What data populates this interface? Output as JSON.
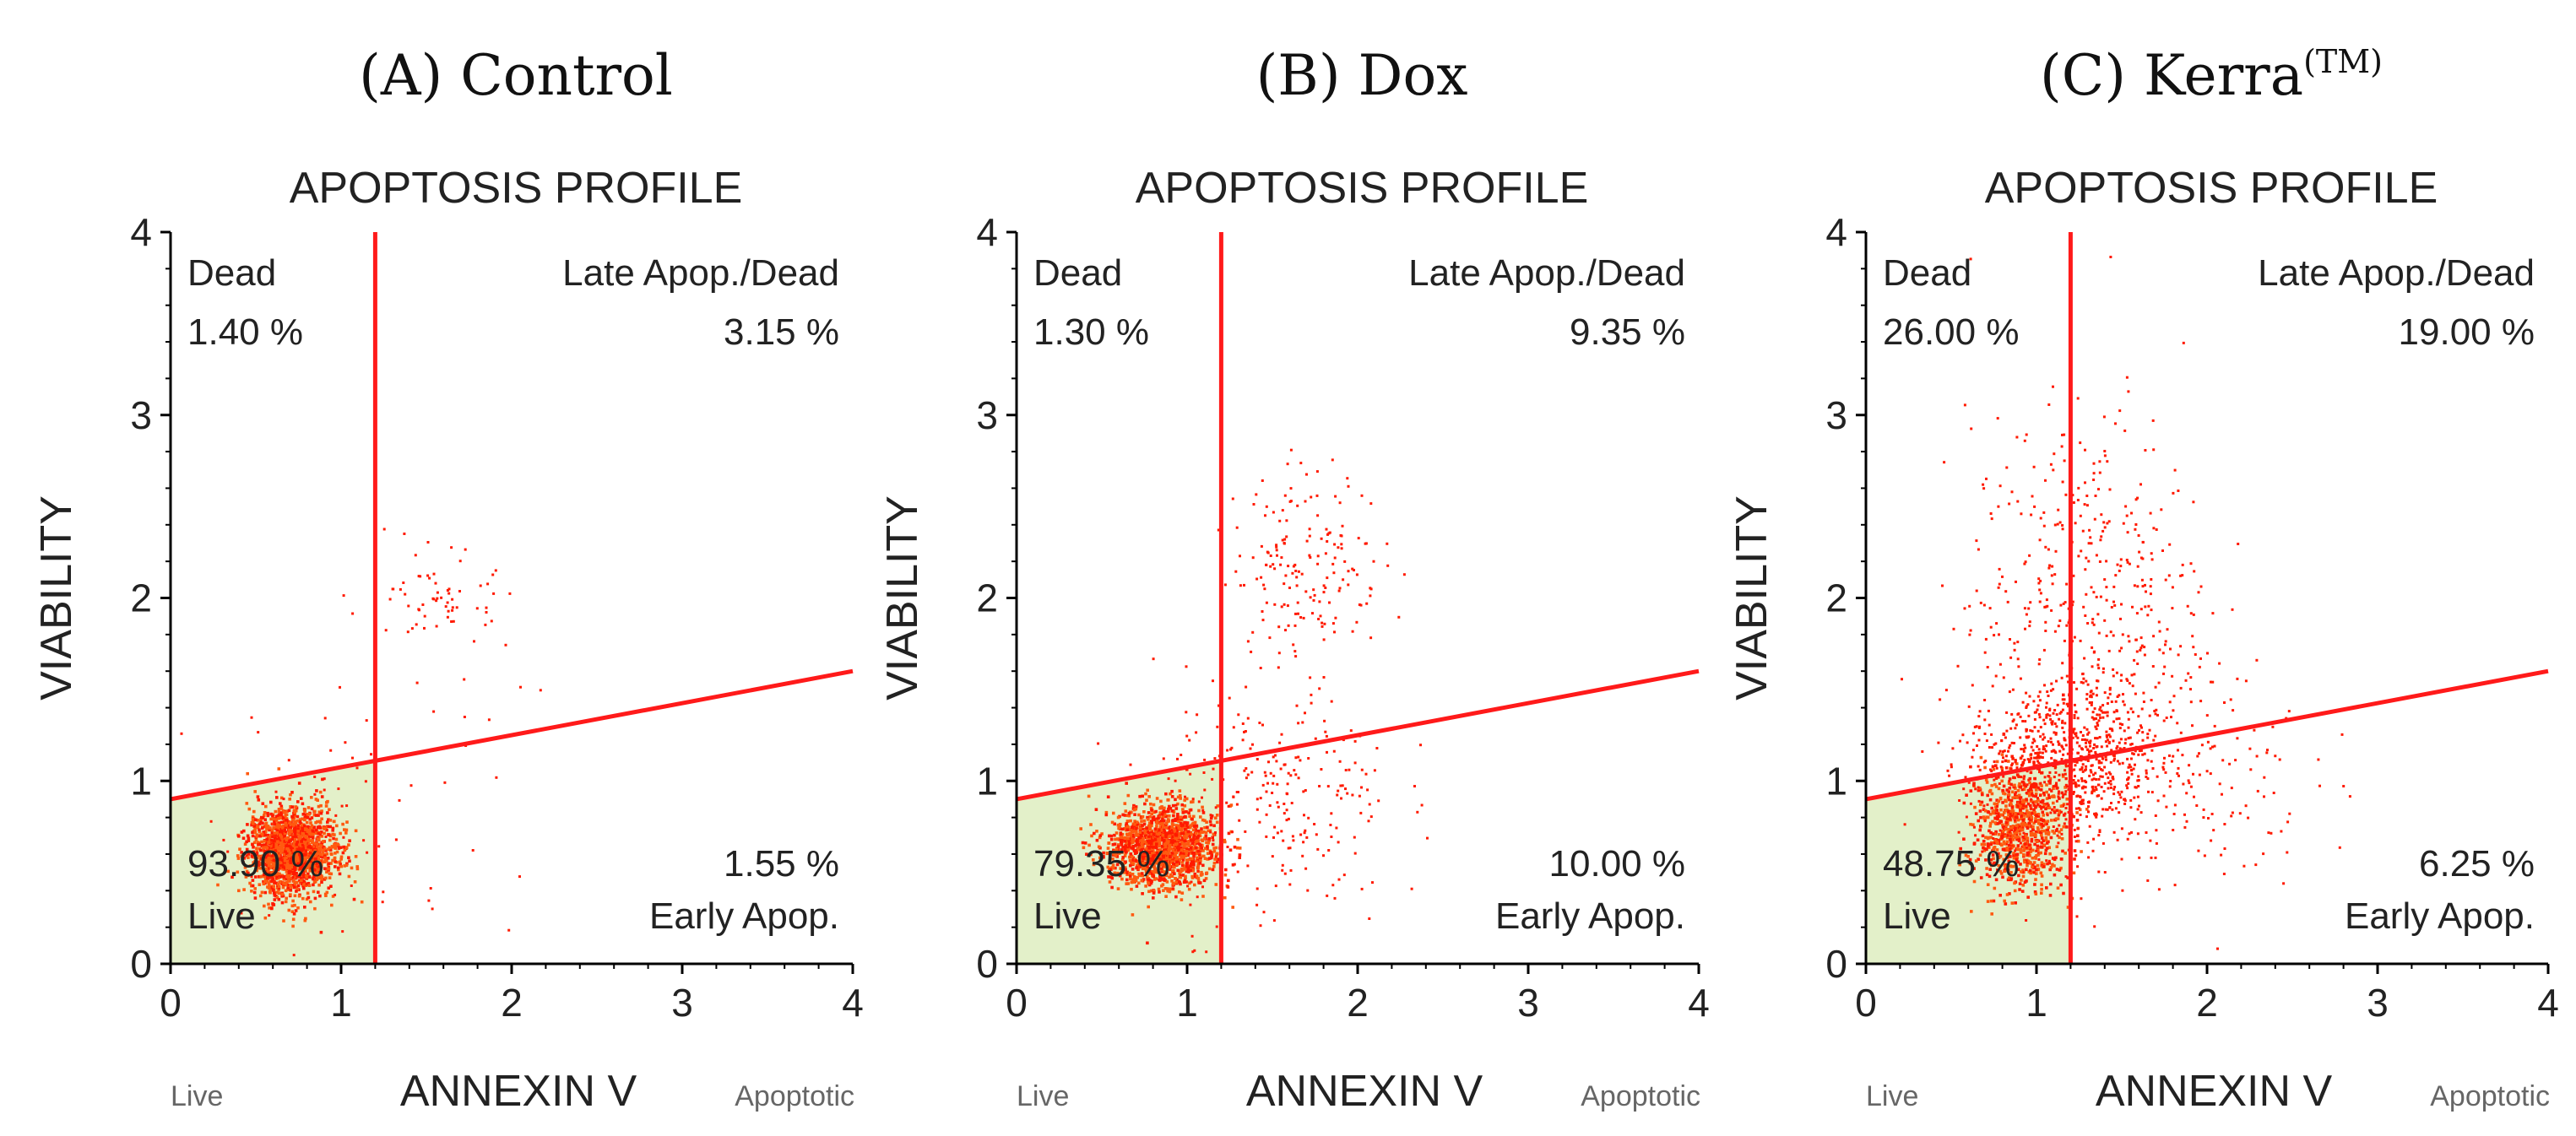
{
  "chart_data": [
    {
      "type": "scatter",
      "panel_title": "(A) Control",
      "panel_sup": "",
      "title": "APOPTOSIS PROFILE",
      "xlabel": "ANNEXIN V",
      "ylabel": "VIABILITY",
      "x_left_label": "Live",
      "x_right_label": "Apoptotic",
      "xlim": [
        0,
        4
      ],
      "ylim": [
        0,
        4
      ],
      "xticks": [
        "0",
        "1",
        "2",
        "3",
        "4"
      ],
      "yticks": [
        "0",
        "1",
        "2",
        "3",
        "4"
      ],
      "vertical_gate_x": 1.2,
      "diagonal_gate": [
        [
          0,
          0.9
        ],
        [
          4,
          1.6
        ]
      ],
      "quadrants": {
        "dead": {
          "name": "Dead",
          "value": "1.40 %"
        },
        "late": {
          "name": "Late Apop./Dead",
          "value": "3.15 %"
        },
        "live": {
          "name": "Live",
          "value": "93.90 %"
        },
        "early": {
          "name": "Early Apop.",
          "value": "1.55 %"
        }
      },
      "clusters": [
        {
          "cx": 0.7,
          "cy": 0.62,
          "sx": 0.13,
          "sy": 0.12,
          "n": 1700
        },
        {
          "cx": 1.6,
          "cy": 2.0,
          "sx": 0.15,
          "sy": 0.12,
          "n": 60
        },
        {
          "cx": 1.1,
          "cy": 1.0,
          "sx": 0.45,
          "sy": 0.45,
          "n": 70
        }
      ],
      "colors": {
        "points": "#ff1a00",
        "core": "#ff5a10",
        "gate": "#ff1a1a",
        "live_fill": "#e3f0c9"
      }
    },
    {
      "type": "scatter",
      "panel_title": "(B) Dox",
      "panel_sup": "",
      "title": "APOPTOSIS PROFILE",
      "xlabel": "ANNEXIN V",
      "ylabel": "VIABILITY",
      "x_left_label": "Live",
      "x_right_label": "Apoptotic",
      "xlim": [
        0,
        4
      ],
      "ylim": [
        0,
        4
      ],
      "xticks": [
        "0",
        "1",
        "2",
        "3",
        "4"
      ],
      "yticks": [
        "0",
        "1",
        "2",
        "3",
        "4"
      ],
      "vertical_gate_x": 1.2,
      "diagonal_gate": [
        [
          0,
          0.9
        ],
        [
          4,
          1.6
        ]
      ],
      "quadrants": {
        "dead": {
          "name": "Dead",
          "value": "1.30 %"
        },
        "late": {
          "name": "Late Apop./Dead",
          "value": "9.35 %"
        },
        "live": {
          "name": "Live",
          "value": "79.35 %"
        },
        "early": {
          "name": "Early Apop.",
          "value": "10.00 %"
        }
      },
      "clusters": [
        {
          "cx": 0.85,
          "cy": 0.65,
          "sx": 0.16,
          "sy": 0.11,
          "n": 1500
        },
        {
          "cx": 1.7,
          "cy": 2.2,
          "sx": 0.22,
          "sy": 0.25,
          "n": 170
        },
        {
          "cx": 1.5,
          "cy": 0.9,
          "sx": 0.35,
          "sy": 0.35,
          "n": 260
        }
      ],
      "colors": {
        "points": "#ff1a00",
        "core": "#ff5a10",
        "gate": "#ff1a1a",
        "live_fill": "#e3f0c9"
      }
    },
    {
      "type": "scatter",
      "panel_title": "(C) Kerra",
      "panel_sup": "(TM)",
      "title": "APOPTOSIS PROFILE",
      "xlabel": "ANNEXIN V",
      "ylabel": "VIABILITY",
      "x_left_label": "Live",
      "x_right_label": "Apoptotic",
      "xlim": [
        0,
        4
      ],
      "ylim": [
        0,
        4
      ],
      "xticks": [
        "0",
        "1",
        "2",
        "3",
        "4"
      ],
      "yticks": [
        "0",
        "1",
        "2",
        "3",
        "4"
      ],
      "vertical_gate_x": 1.2,
      "diagonal_gate": [
        [
          0,
          0.9
        ],
        [
          4,
          1.6
        ]
      ],
      "quadrants": {
        "dead": {
          "name": "Dead",
          "value": "26.00 %"
        },
        "late": {
          "name": "Late Apop./Dead",
          "value": "19.00 %"
        },
        "live": {
          "name": "Live",
          "value": "48.75 %"
        },
        "early": {
          "name": "Early Apop.",
          "value": "6.25 %"
        }
      },
      "clusters": [
        {
          "cx": 0.9,
          "cy": 0.75,
          "sx": 0.13,
          "sy": 0.17,
          "n": 850
        },
        {
          "cx": 1.15,
          "cy": 1.1,
          "sx": 0.28,
          "sy": 0.22,
          "n": 700
        },
        {
          "cx": 1.3,
          "cy": 1.9,
          "sx": 0.35,
          "sy": 0.55,
          "n": 500
        },
        {
          "cx": 1.8,
          "cy": 1.0,
          "sx": 0.4,
          "sy": 0.3,
          "n": 150
        }
      ],
      "colors": {
        "points": "#ff1a00",
        "core": "#ff5a10",
        "gate": "#ff1a1a",
        "live_fill": "#e3f0c9"
      }
    }
  ]
}
